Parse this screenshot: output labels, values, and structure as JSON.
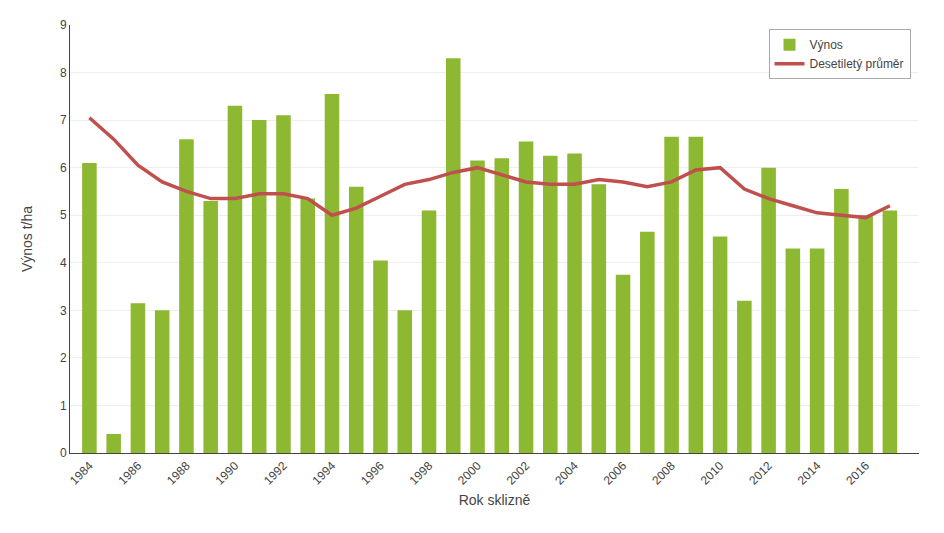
{
  "chart_data": {
    "type": "bar",
    "xlabel": "Rok sklizně",
    "ylabel": "Výnos t/ha",
    "x": [
      1984,
      1985,
      1986,
      1987,
      1988,
      1989,
      1990,
      1991,
      1992,
      1993,
      1994,
      1995,
      1996,
      1997,
      1998,
      1999,
      2000,
      2001,
      2002,
      2003,
      2004,
      2005,
      2006,
      2007,
      2008,
      2009,
      2010,
      2011,
      2012,
      2013,
      2014,
      2015,
      2016,
      2017
    ],
    "series": [
      {
        "name": "Výnos",
        "type": "bar",
        "color": "#8db832",
        "values": [
          6.1,
          0.4,
          3.15,
          3.0,
          6.6,
          5.3,
          7.3,
          7.0,
          7.1,
          5.35,
          7.55,
          5.6,
          4.05,
          3.0,
          5.1,
          8.3,
          6.15,
          6.2,
          6.55,
          6.25,
          6.3,
          5.65,
          3.75,
          4.65,
          6.65,
          6.65,
          4.55,
          3.2,
          6.0,
          4.3,
          4.3,
          5.55,
          5.0,
          5.1
        ]
      },
      {
        "name": "Desetiletý průměr",
        "type": "line",
        "color": "#c0504d",
        "values": [
          7.05,
          6.6,
          6.05,
          5.7,
          5.5,
          5.35,
          5.35,
          5.45,
          5.45,
          5.35,
          5.0,
          5.15,
          5.4,
          5.65,
          5.75,
          5.9,
          6.0,
          5.85,
          5.7,
          5.65,
          5.65,
          5.75,
          5.7,
          5.6,
          5.7,
          5.95,
          6.0,
          5.55,
          5.35,
          5.2,
          5.05,
          5.0,
          4.95,
          5.2
        ]
      }
    ],
    "xlim": [
      1983.2,
      2018.2
    ],
    "xticks": [
      1984,
      1986,
      1988,
      1990,
      1992,
      1994,
      1996,
      1998,
      2000,
      2002,
      2004,
      2006,
      2008,
      2010,
      2012,
      2014,
      2016
    ],
    "ylim": [
      0,
      9
    ],
    "yticks": [
      0,
      1,
      2,
      3,
      4,
      5,
      6,
      7,
      8,
      9
    ],
    "grid": "y",
    "legend": "upper right"
  }
}
